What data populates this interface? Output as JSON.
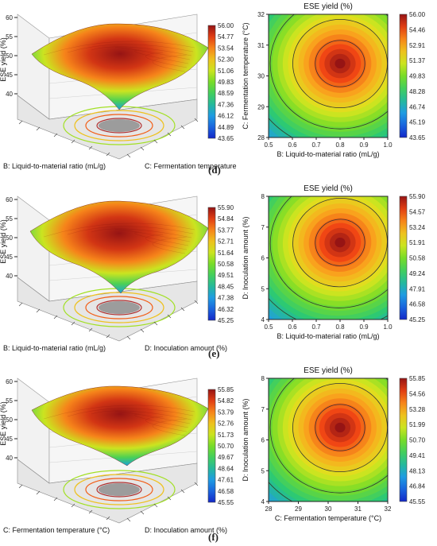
{
  "panels": [
    {
      "letter": "(d)",
      "surface": {
        "zlabel": "ESE yield (%)",
        "xlabel": "B: Liquid-to-material ratio (mL/g)",
        "ylabel": "C: Fermentation temperature (°C)",
        "zticks": [
          "60",
          "55",
          "50",
          "45",
          "40"
        ],
        "colorbar": [
          "56.00",
          "54.77",
          "53.54",
          "52.30",
          "51.06",
          "49.83",
          "48.59",
          "47.36",
          "46.12",
          "44.89",
          "43.65"
        ]
      },
      "contour": {
        "title": "ESE yield (%)",
        "xlabel": "B: Liquid-to-material ratio (mL/g)",
        "ylabel": "C: Fermentation temperature (°C)",
        "xticks": [
          "0.5",
          "0.6",
          "0.7",
          "0.8",
          "0.9",
          "1.0"
        ],
        "yticks": [
          "32",
          "31",
          "30",
          "29",
          "28"
        ],
        "colorbar": [
          "56.00",
          "54.46",
          "52.91",
          "51.37",
          "49.83",
          "48.28",
          "46.74",
          "45.19",
          "43.65"
        ]
      }
    },
    {
      "letter": "(e)",
      "surface": {
        "zlabel": "ESE yield (%)",
        "xlabel": "B: Liquid-to-material ratio (mL/g)",
        "ylabel": "D: Inoculation amount (%)",
        "zticks": [
          "60",
          "55",
          "50",
          "45",
          "40"
        ],
        "colorbar": [
          "55.90",
          "54.84",
          "53.77",
          "52.71",
          "51.64",
          "50.58",
          "49.51",
          "48.45",
          "47.38",
          "46.32",
          "45.25"
        ]
      },
      "contour": {
        "title": "ESE yield (%)",
        "xlabel": "B: Liquid-to-material ratio (mL/g)",
        "ylabel": "D: Inoculation amount (%)",
        "xticks": [
          "0.5",
          "0.6",
          "0.7",
          "0.8",
          "0.9",
          "1.0"
        ],
        "yticks": [
          "8",
          "7",
          "6",
          "5",
          "4"
        ],
        "colorbar": [
          "55.90",
          "54.57",
          "53.24",
          "51.91",
          "50.58",
          "49.24",
          "47.91",
          "46.58",
          "45.25"
        ]
      }
    },
    {
      "letter": "(f)",
      "surface": {
        "zlabel": "ESE yield (%)",
        "xlabel": "C: Fermentation temperature (°C)",
        "ylabel": "D: Inoculation amount (%)",
        "zticks": [
          "60",
          "55",
          "50",
          "45",
          "40"
        ],
        "colorbar": [
          "55.85",
          "54.82",
          "53.79",
          "52.76",
          "51.73",
          "50.70",
          "49.67",
          "48.64",
          "47.61",
          "46.58",
          "45.55"
        ]
      },
      "contour": {
        "title": "ESE yield (%)",
        "xlabel": "C: Fermentation temperature (°C)",
        "ylabel": "D: Inoculation amount (%)",
        "xticks": [
          "28",
          "29",
          "30",
          "31",
          "32"
        ],
        "yticks": [
          "8",
          "7",
          "6",
          "5",
          "4"
        ],
        "colorbar": [
          "55.85",
          "54.56",
          "53.28",
          "51.99",
          "50.70",
          "49.41",
          "48.13",
          "46.84",
          "45.55"
        ]
      }
    }
  ],
  "chart_data": [
    {
      "type": "heatmap",
      "title": "ESE yield (%)",
      "xlabel": "B: Liquid-to-material ratio (mL/g)",
      "ylabel": "C: Fermentation temperature (°C)",
      "xlim": [
        0.5,
        1.0
      ],
      "ylim": [
        28,
        32
      ],
      "zrange": [
        43.65,
        56.0
      ],
      "optimum": {
        "x": 0.8,
        "y": 30.4,
        "value": 56.0
      }
    },
    {
      "type": "heatmap",
      "title": "ESE yield (%)",
      "xlabel": "B: Liquid-to-material ratio (mL/g)",
      "ylabel": "D: Inoculation amount (%)",
      "xlim": [
        0.5,
        1.0
      ],
      "ylim": [
        4,
        8
      ],
      "zrange": [
        45.25,
        55.9
      ],
      "optimum": {
        "x": 0.8,
        "y": 6.5,
        "value": 55.9
      }
    },
    {
      "type": "heatmap",
      "title": "ESE yield (%)",
      "xlabel": "C: Fermentation temperature (°C)",
      "ylabel": "D: Inoculation amount (%)",
      "xlim": [
        28,
        32
      ],
      "ylim": [
        4,
        8
      ],
      "zrange": [
        45.55,
        55.85
      ],
      "optimum": {
        "x": 30.4,
        "y": 6.4,
        "value": 55.85
      }
    }
  ]
}
